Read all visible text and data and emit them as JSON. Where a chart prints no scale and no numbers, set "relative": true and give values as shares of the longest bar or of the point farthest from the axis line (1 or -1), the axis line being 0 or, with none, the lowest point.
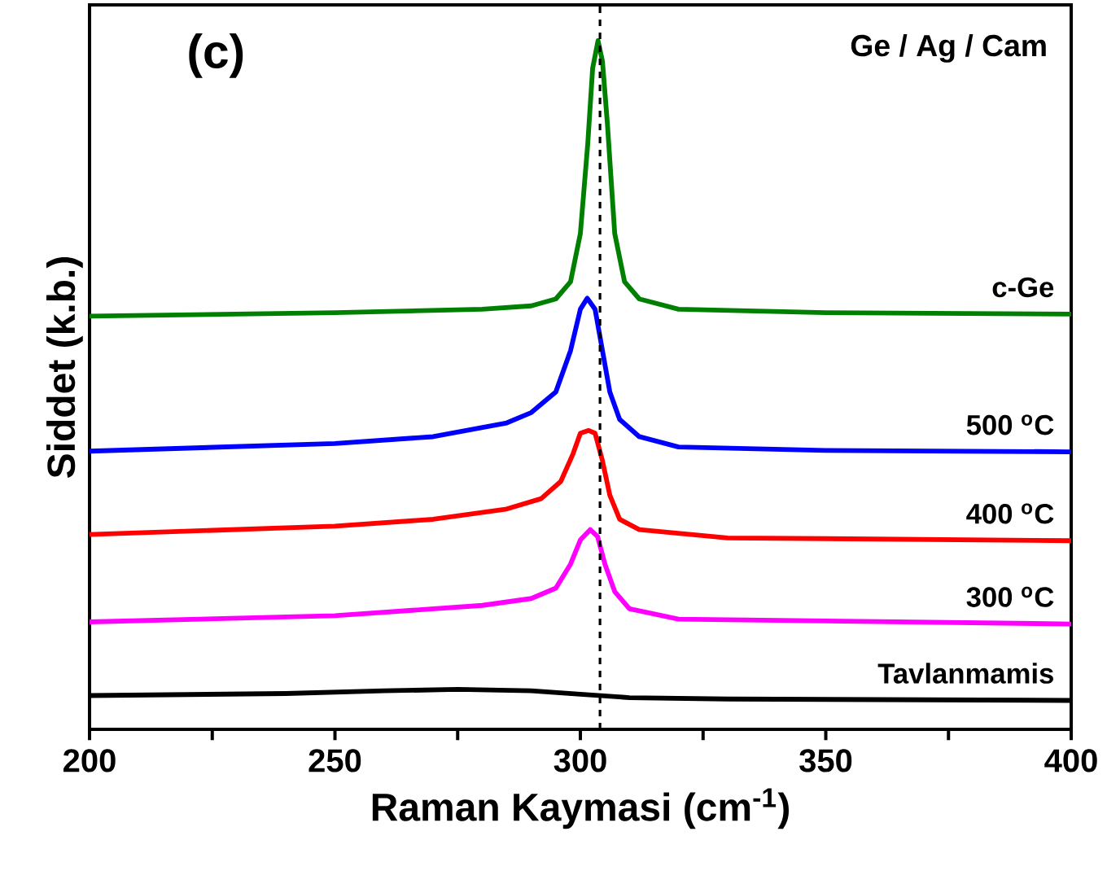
{
  "chart_data": {
    "type": "line",
    "relative": true,
    "xlabel": "Raman Kaymasi (cm$^{-1}$)",
    "ylabel": "Siddet (k.b.)",
    "annotations": [
      "(c)",
      "Ge / Ag / Cam"
    ],
    "xlim": [
      200,
      400
    ],
    "xticks": [
      200,
      {
        "value": 225,
        "label": null
      },
      250,
      {
        "value": 275,
        "label": null
      },
      300,
      {
        "value": 325,
        "label": null
      },
      350,
      {
        "value": 375,
        "label": null
      },
      400
    ],
    "legend": false,
    "grid": false,
    "marker": "none",
    "line_style": "solid",
    "ref_lines": [
      {
        "axis": "x",
        "value": 304,
        "color": "#000000",
        "line_style": "dashed"
      }
    ],
    "series": [
      {
        "name": "c-Ge",
        "color": "#008000",
        "x": [
          200,
          250,
          280,
          290,
          295,
          298,
          300,
          301.5,
          302.5,
          303.6,
          304.5,
          305.5,
          307,
          309,
          312,
          320,
          350,
          400
        ],
        "values": [
          0.6,
          0.605,
          0.61,
          0.615,
          0.625,
          0.65,
          0.72,
          0.85,
          0.96,
          1.0,
          0.97,
          0.88,
          0.72,
          0.65,
          0.625,
          0.61,
          0.605,
          0.603
        ]
      },
      {
        "name": "500 $^{o}$C",
        "color": "#0000ff",
        "x": [
          200,
          250,
          270,
          285,
          290,
          295,
          298,
          300,
          301.4,
          303,
          304.5,
          306,
          308,
          312,
          320,
          350,
          400
        ],
        "values": [
          0.404,
          0.415,
          0.425,
          0.445,
          0.46,
          0.49,
          0.55,
          0.61,
          0.626,
          0.61,
          0.55,
          0.49,
          0.45,
          0.425,
          0.41,
          0.405,
          0.403
        ]
      },
      {
        "name": "400 $^{o}$C",
        "color": "#ff0000",
        "x": [
          200,
          250,
          270,
          285,
          292,
          296,
          298.5,
          300,
          301.7,
          303,
          304.5,
          306,
          308,
          312,
          330,
          400
        ],
        "values": [
          0.283,
          0.295,
          0.305,
          0.32,
          0.335,
          0.36,
          0.4,
          0.43,
          0.434,
          0.43,
          0.39,
          0.34,
          0.305,
          0.29,
          0.278,
          0.274
        ]
      },
      {
        "name": "300 $^{o}$C",
        "color": "#ff00ff",
        "x": [
          200,
          250,
          280,
          290,
          295,
          298,
          300,
          302,
          303.5,
          305,
          307,
          310,
          320,
          400
        ],
        "values": [
          0.156,
          0.165,
          0.18,
          0.19,
          0.205,
          0.24,
          0.275,
          0.29,
          0.28,
          0.24,
          0.2,
          0.175,
          0.16,
          0.153
        ]
      },
      {
        "name": "Tavlanmamis",
        "color": "#000000",
        "x": [
          200,
          240,
          260,
          275,
          290,
          300,
          310,
          330,
          400
        ],
        "values": [
          0.049,
          0.052,
          0.056,
          0.058,
          0.056,
          0.051,
          0.046,
          0.044,
          0.042
        ]
      }
    ]
  }
}
